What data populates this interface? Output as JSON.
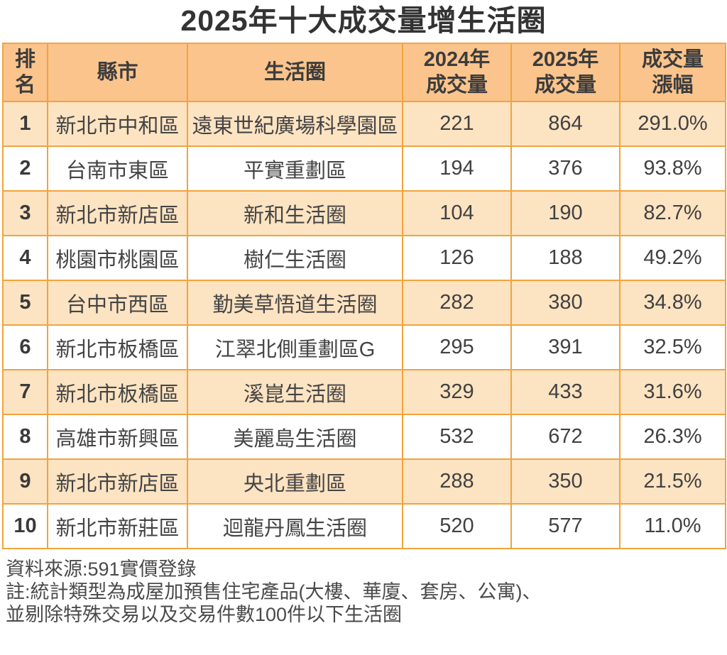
{
  "title": "2025年十大成交量增生活圈",
  "colors": {
    "header_bg": "#FBC48C",
    "row_alt_bg": "#FCE3C2",
    "row_bg": "#FFFFFF",
    "border": "#F1A43C",
    "text": "#414141",
    "title_text": "#333333"
  },
  "table": {
    "headers": [
      "排\n名",
      "縣市",
      "生活圈",
      "2024年\n成交量",
      "2025年\n成交量",
      "成交量\n漲幅"
    ],
    "rows": [
      {
        "rank": "1",
        "city": "新北市中和區",
        "area": "遠東世紀廣場科學園區",
        "y2024": "221",
        "y2025": "864",
        "change": "291.0%"
      },
      {
        "rank": "2",
        "city": "台南市東區",
        "area": "平實重劃區",
        "y2024": "194",
        "y2025": "376",
        "change": "93.8%"
      },
      {
        "rank": "3",
        "city": "新北市新店區",
        "area": "新和生活圈",
        "y2024": "104",
        "y2025": "190",
        "change": "82.7%"
      },
      {
        "rank": "4",
        "city": "桃園市桃園區",
        "area": "樹仁生活圈",
        "y2024": "126",
        "y2025": "188",
        "change": "49.2%"
      },
      {
        "rank": "5",
        "city": "台中市西區",
        "area": "勤美草悟道生活圈",
        "y2024": "282",
        "y2025": "380",
        "change": "34.8%"
      },
      {
        "rank": "6",
        "city": "新北市板橋區",
        "area": "江翠北側重劃區G",
        "y2024": "295",
        "y2025": "391",
        "change": "32.5%"
      },
      {
        "rank": "7",
        "city": "新北市板橋區",
        "area": "溪崑生活圈",
        "y2024": "329",
        "y2025": "433",
        "change": "31.6%"
      },
      {
        "rank": "8",
        "city": "高雄市新興區",
        "area": "美麗島生活圈",
        "y2024": "532",
        "y2025": "672",
        "change": "26.3%"
      },
      {
        "rank": "9",
        "city": "新北市新店區",
        "area": "央北重劃區",
        "y2024": "288",
        "y2025": "350",
        "change": "21.5%"
      },
      {
        "rank": "10",
        "city": "新北市新莊區",
        "area": "迴龍丹鳳生活圈",
        "y2024": "520",
        "y2025": "577",
        "change": "11.0%"
      }
    ]
  },
  "footer": {
    "source": "資料來源:591實價登錄",
    "note_line1": "註:統計類型為成屋加預售住宅產品(大樓、華廈、套房、公寓)、",
    "note_line2": "並剔除特殊交易以及交易件數100件以下生活圈"
  },
  "chart_data": {
    "type": "table",
    "title": "2025年十大成交量增生活圈",
    "columns": [
      "排名",
      "縣市",
      "生活圈",
      "2024年成交量",
      "2025年成交量",
      "成交量漲幅"
    ],
    "rows": [
      [
        1,
        "新北市中和區",
        "遠東世紀廣場科學園區",
        221,
        864,
        "291.0%"
      ],
      [
        2,
        "台南市東區",
        "平實重劃區",
        194,
        376,
        "93.8%"
      ],
      [
        3,
        "新北市新店區",
        "新和生活圈",
        104,
        190,
        "82.7%"
      ],
      [
        4,
        "桃園市桃園區",
        "樹仁生活圈",
        126,
        188,
        "49.2%"
      ],
      [
        5,
        "台中市西區",
        "勤美草悟道生活圈",
        282,
        380,
        "34.8%"
      ],
      [
        6,
        "新北市板橋區",
        "江翠北側重劃區G",
        295,
        391,
        "32.5%"
      ],
      [
        7,
        "新北市板橋區",
        "溪崑生活圈",
        329,
        433,
        "31.6%"
      ],
      [
        8,
        "高雄市新興區",
        "美麗島生活圈",
        532,
        672,
        "26.3%"
      ],
      [
        9,
        "新北市新店區",
        "央北重劃區",
        288,
        350,
        "21.5%"
      ],
      [
        10,
        "新北市新莊區",
        "迴龍丹鳳生活圈",
        520,
        577,
        "11.0%"
      ]
    ],
    "source": "資料來源:591實價登錄",
    "notes": [
      "註:統計類型為成屋加預售住宅產品(大樓、華廈、套房、公寓)、",
      "並剔除特殊交易以及交易件數100件以下生活圈"
    ]
  }
}
